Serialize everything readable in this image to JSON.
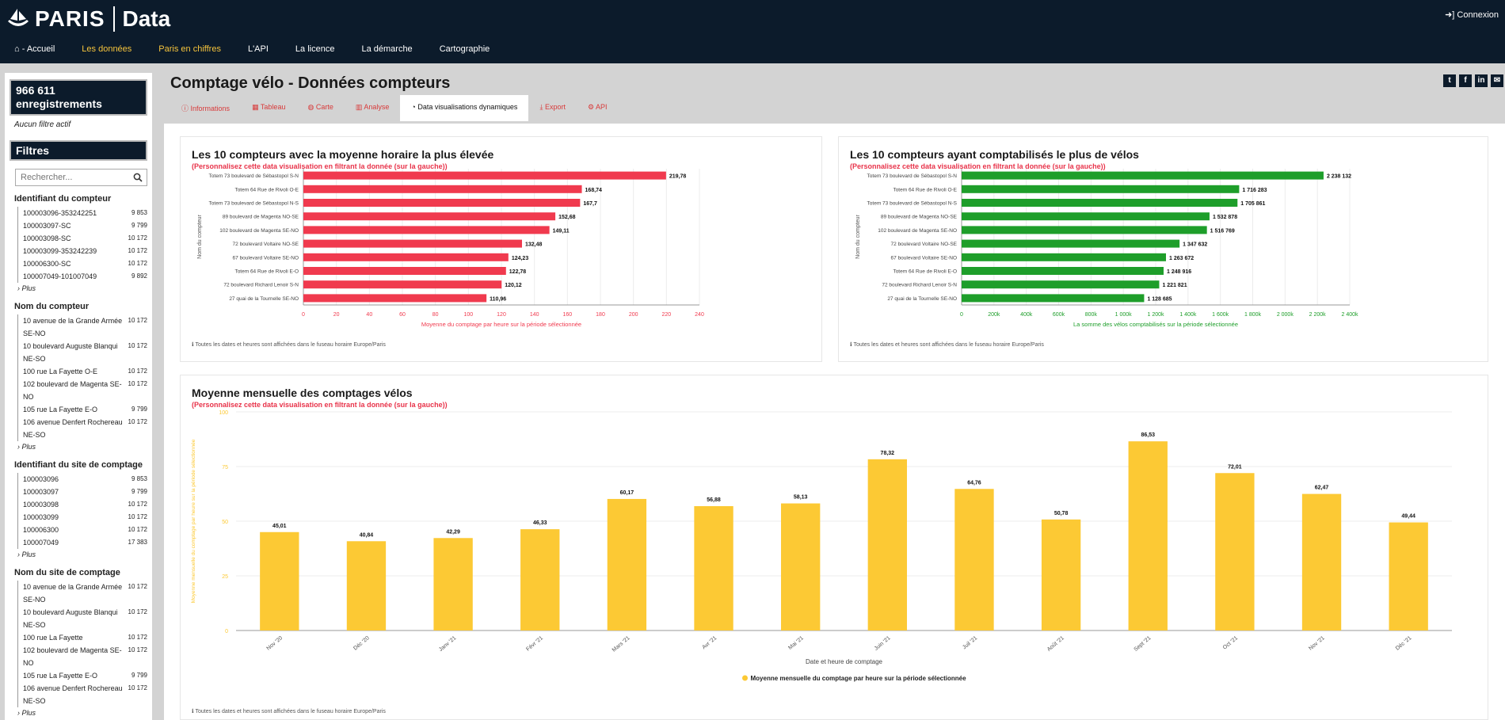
{
  "header": {
    "brand": "PARIS",
    "product": "Data",
    "login": "Connexion",
    "nav": [
      "- Accueil",
      "Les données",
      "Paris en chiffres",
      "L'API",
      "La licence",
      "La démarche",
      "Cartographie"
    ]
  },
  "sidebar": {
    "records": "966 611 enregistrements",
    "no_filter": "Aucun filtre actif",
    "filters_title": "Filtres",
    "search_placeholder": "Rechercher...",
    "more": "Plus",
    "facets": [
      {
        "title": "Identifiant du compteur",
        "items": [
          {
            "label": "100003096-353242251",
            "value": "9 853"
          },
          {
            "label": "100003097-SC",
            "value": "9 799"
          },
          {
            "label": "100003098-SC",
            "value": "10 172"
          },
          {
            "label": "100003099-353242239",
            "value": "10 172"
          },
          {
            "label": "100006300-SC",
            "value": "10 172"
          },
          {
            "label": "100007049-101007049",
            "value": "9 892"
          }
        ]
      },
      {
        "title": "Nom du compteur",
        "items": [
          {
            "label": "10 avenue de la Grande Armée SE-NO",
            "value": "10 172"
          },
          {
            "label": "10 boulevard Auguste Blanqui NE-SO",
            "value": "10 172"
          },
          {
            "label": "100 rue La Fayette O-E",
            "value": "10 172"
          },
          {
            "label": "102 boulevard de Magenta SE-NO",
            "value": "10 172"
          },
          {
            "label": "105 rue La Fayette E-O",
            "value": "9 799"
          },
          {
            "label": "106 avenue Denfert Rochereau NE-SO",
            "value": "10 172"
          }
        ]
      },
      {
        "title": "Identifiant du site de comptage",
        "items": [
          {
            "label": "100003096",
            "value": "9 853"
          },
          {
            "label": "100003097",
            "value": "9 799"
          },
          {
            "label": "100003098",
            "value": "10 172"
          },
          {
            "label": "100003099",
            "value": "10 172"
          },
          {
            "label": "100006300",
            "value": "10 172"
          },
          {
            "label": "100007049",
            "value": "17 383"
          }
        ]
      },
      {
        "title": "Nom du site de comptage",
        "items": [
          {
            "label": "10 avenue de la Grande Armée SE-NO",
            "value": "10 172"
          },
          {
            "label": "10 boulevard Auguste Blanqui NE-SO",
            "value": "10 172"
          },
          {
            "label": "100 rue La Fayette",
            "value": "10 172"
          },
          {
            "label": "102 boulevard de Magenta SE-NO",
            "value": "10 172"
          },
          {
            "label": "105 rue La Fayette E-O",
            "value": "9 799"
          },
          {
            "label": "106 avenue Denfert Rochereau NE-SO",
            "value": "10 172"
          }
        ]
      }
    ]
  },
  "main": {
    "title": "Comptage vélo - Données compteurs",
    "share": [
      "t",
      "f",
      "in",
      "✉"
    ],
    "tabs": [
      "Informations",
      "Tableau",
      "Carte",
      "Analyse",
      "Data visualisations dynamiques",
      "Export",
      "API"
    ],
    "active_tab": 4,
    "subtitle": "(Personnalisez cette data visualisation en filtrant la donnée (sur la gauche))",
    "note": "Toutes les dates et heures sont affichées dans le fuseau horaire Europe/Paris"
  },
  "colors": {
    "red": "#f03a4e",
    "green": "#1e9e2a",
    "yellow": "#fcc934",
    "navy": "#0c1b2b"
  },
  "chart_data": [
    {
      "type": "bar",
      "orientation": "horizontal",
      "title": "Les 10 compteurs avec la moyenne horaire la plus élevée",
      "categories": [
        "Totem 73 boulevard de Sébastopol S-N",
        "Totem 64 Rue de Rivoli O-E",
        "Totem 73 boulevard de Sébastopol N-S",
        "89 boulevard de Magenta NO-SE",
        "102 boulevard de Magenta SE-NO",
        "72 boulevard Voltaire NO-SE",
        "67 boulevard Voltaire SE-NO",
        "Totem 64 Rue de Rivoli E-O",
        "72 boulevard Richard Lenoir S-N",
        "27 quai de la Tournelle SE-NO"
      ],
      "values": [
        219.78,
        168.74,
        167.7,
        152.68,
        149.11,
        132.48,
        124.23,
        122.78,
        120.12,
        110.96
      ],
      "labels": [
        "219,78",
        "168,74",
        "167,7",
        "152,68",
        "149,11",
        "132,48",
        "124,23",
        "122,78",
        "120,12",
        "110,96"
      ],
      "ticks": [
        "0",
        "20",
        "40",
        "60",
        "80",
        "100",
        "120",
        "140",
        "160",
        "180",
        "200",
        "220",
        "240"
      ],
      "xlim": [
        0,
        240
      ],
      "xlabel": "Moyenne du comptage par heure sur la période sélectionnée",
      "ylabel": "Nom du compteur"
    },
    {
      "type": "bar",
      "orientation": "horizontal",
      "title": "Les 10 compteurs ayant comptabilisés le plus de vélos",
      "categories": [
        "Totem 73 boulevard de Sébastopol S-N",
        "Totem 64 Rue de Rivoli O-E",
        "Totem 73 boulevard de Sébastopol N-S",
        "89 boulevard de Magenta NO-SE",
        "102 boulevard de Magenta SE-NO",
        "72 boulevard Voltaire NO-SE",
        "67 boulevard Voltaire SE-NO",
        "Totem 64 Rue de Rivoli E-O",
        "72 boulevard Richard Lenoir S-N",
        "27 quai de la Tournelle SE-NO"
      ],
      "values": [
        2238132,
        1716283,
        1705861,
        1532878,
        1516769,
        1347632,
        1263672,
        1248916,
        1221821,
        1128685
      ],
      "labels": [
        "2 238 132",
        "1 716 283",
        "1 705 861",
        "1 532 878",
        "1 516 769",
        "1 347 632",
        "1 263 672",
        "1 248 916",
        "1 221 821",
        "1 128 685"
      ],
      "ticks": [
        "0",
        "200k",
        "400k",
        "600k",
        "800k",
        "1 000k",
        "1 200k",
        "1 400k",
        "1 600k",
        "1 800k",
        "2 000k",
        "2 200k",
        "2 400k"
      ],
      "xlim": [
        0,
        2400000
      ],
      "xlabel": "La somme des vélos comptabilisés sur la période sélectionnée",
      "ylabel": "Nom du compteur"
    },
    {
      "type": "bar",
      "orientation": "vertical",
      "title": "Moyenne mensuelle des comptages vélos",
      "categories": [
        "Nov '20",
        "Déc '20",
        "Janv '21",
        "Févr '21",
        "Mars '21",
        "Avr '21",
        "Mai '21",
        "Juin '21",
        "Juil '21",
        "Août '21",
        "Sept '21",
        "Oct '21",
        "Nov '21",
        "Déc '21"
      ],
      "values": [
        45.01,
        40.84,
        42.29,
        46.33,
        60.17,
        56.88,
        58.13,
        78.32,
        64.76,
        50.78,
        86.53,
        72.01,
        62.47,
        49.44
      ],
      "labels": [
        "45,01",
        "40,84",
        "42,29",
        "46,33",
        "60,17",
        "56,88",
        "58,13",
        "78,32",
        "64,76",
        "50,78",
        "86,53",
        "72,01",
        "62,47",
        "49,44"
      ],
      "ticks": [
        "0",
        "25",
        "50",
        "75",
        "100"
      ],
      "ylim": [
        0,
        100
      ],
      "xlabel": "Date et heure de comptage",
      "ylabel": "Moyenne mensuelle du comptage par heure sur la période sélectionnée",
      "legend": "Moyenne mensuelle du comptage par heure sur la période sélectionnée"
    }
  ]
}
